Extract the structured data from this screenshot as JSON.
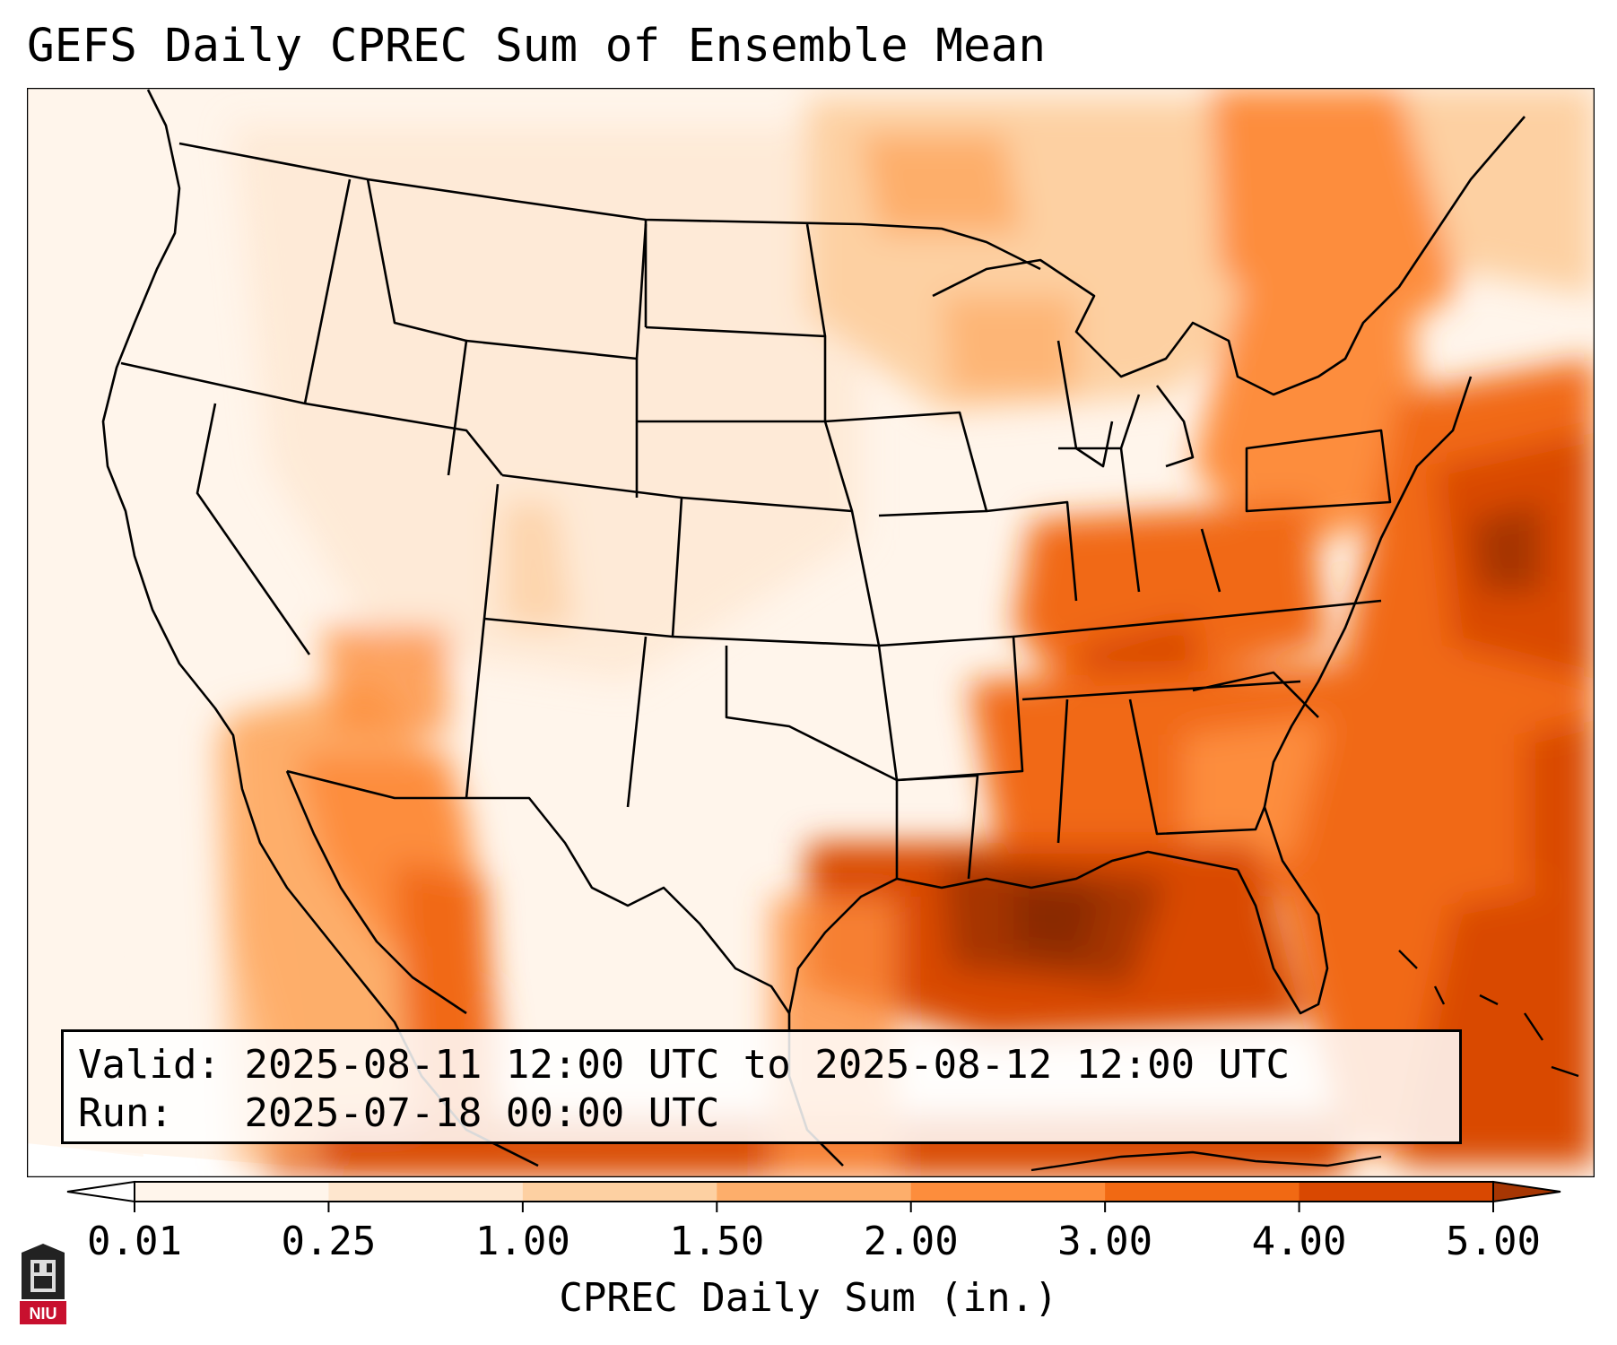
{
  "title": "GEFS Daily CPREC Sum of Ensemble Mean",
  "info": {
    "valid_label": "Valid:",
    "valid_value": "2025-08-11 12:00 UTC to 2025-08-12 12:00 UTC",
    "run_label": "Run:",
    "run_value": "2025-07-18 00:00 UTC"
  },
  "colorbar": {
    "title": "CPREC Daily Sum (in.)",
    "ticks": [
      "0.01",
      "0.25",
      "1.00",
      "1.50",
      "2.00",
      "3.00",
      "4.00",
      "5.00"
    ],
    "colors": [
      "#fff5eb",
      "#fee6ce",
      "#fdd0a2",
      "#fdae6b",
      "#fd8d3c",
      "#f16913",
      "#d94801",
      "#a63603"
    ],
    "extend_low_color": "#ffffff",
    "extend_high_color": "#7f2704"
  },
  "logo": {
    "text": "NIU",
    "color": "#c8102e"
  }
}
